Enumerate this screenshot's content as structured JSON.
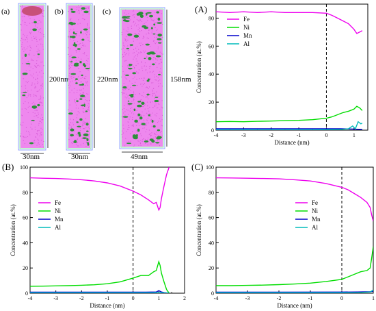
{
  "tomography": {
    "panels": [
      {
        "label": "(a)",
        "width_label": "30nm",
        "height_label": "200nm"
      },
      {
        "label": "(b)",
        "width_label": "30nm",
        "height_label": "220nm"
      },
      {
        "label": "(c)",
        "width_label": "49nm",
        "height_label": "158nm"
      }
    ],
    "colors": {
      "matrix": "#ee88ee",
      "matrix_dense": "#d65bd6",
      "precipitate": "#2d8f3a",
      "frame_left": "#8fa3ff",
      "frame_right": "#8de0a8"
    }
  },
  "chart_data": [
    {
      "id": "A",
      "type": "line",
      "panel_label": "(A)",
      "xlabel": "Distance (nm)",
      "ylabel": "Concentration (at.%)",
      "xlim": [
        -4,
        1.5
      ],
      "ylim": [
        0,
        90
      ],
      "xticks": [
        -4,
        -3,
        -2,
        -1,
        0,
        1
      ],
      "xtick_labels": [
        "-4",
        "-3",
        "-2",
        "-1",
        "0",
        "1"
      ],
      "yticks": [
        0,
        20,
        40,
        60,
        80
      ],
      "ytick_labels": [
        "0",
        "20",
        "40",
        "60",
        "80"
      ],
      "interface_x": 0,
      "legend": {
        "position": "top-left",
        "entries": [
          "Fe",
          "Ni",
          "Mn",
          "Al"
        ]
      },
      "series": [
        {
          "name": "Fe",
          "color": "#ee00ee",
          "x": [
            -4,
            -3.5,
            -3,
            -2.5,
            -2,
            -1.5,
            -1,
            -0.5,
            0,
            0.2,
            0.4,
            0.6,
            0.8,
            1.0,
            1.1,
            1.2,
            1.3
          ],
          "y": [
            84.5,
            84,
            84.5,
            84,
            84.5,
            84,
            84,
            84,
            83.5,
            82,
            80,
            78,
            76,
            72,
            69,
            70,
            71
          ]
        },
        {
          "name": "Ni",
          "color": "#00dd00",
          "x": [
            -4,
            -3.5,
            -3,
            -2.5,
            -2,
            -1.5,
            -1,
            -0.5,
            0,
            0.2,
            0.4,
            0.6,
            0.8,
            1.0,
            1.1,
            1.2,
            1.3
          ],
          "y": [
            6,
            6.2,
            6,
            6.3,
            6.5,
            6.8,
            7,
            7.5,
            8.5,
            9.5,
            11,
            12.5,
            13.5,
            15,
            17,
            16,
            14
          ]
        },
        {
          "name": "Mn",
          "color": "#0000cc",
          "x": [
            -4,
            -3,
            -2,
            -1,
            0,
            0.5,
            1.0,
            1.2,
            1.3
          ],
          "y": [
            1,
            1,
            1,
            1,
            1,
            1,
            0.8,
            0.6,
            0.5
          ]
        },
        {
          "name": "Al",
          "color": "#00bbbb",
          "x": [
            -4,
            -3,
            -2,
            -1,
            -0.5,
            0,
            0.5,
            0.8,
            0.95,
            1.05,
            1.15,
            1.25,
            1.3
          ],
          "y": [
            0.3,
            0.3,
            0.3,
            0.3,
            0.3,
            0.4,
            0.5,
            1,
            3,
            1,
            6,
            4.5,
            5
          ]
        }
      ]
    },
    {
      "id": "B",
      "type": "line",
      "panel_label": "(B)",
      "xlabel": "Distance (nm)",
      "ylabel": "Concentration (at.%)",
      "xlim": [
        -4,
        2
      ],
      "ylim": [
        0,
        100
      ],
      "xticks": [
        -4,
        -3,
        -2,
        -1,
        0,
        1,
        2
      ],
      "xtick_labels": [
        "-4",
        "-3",
        "-2",
        "-1",
        "0",
        "1",
        "2"
      ],
      "yticks": [
        0,
        20,
        40,
        60,
        80,
        100
      ],
      "ytick_labels": [
        "0",
        "20",
        "40",
        "60",
        "80",
        "100"
      ],
      "interface_x": 0,
      "legend": {
        "position": "left",
        "entries": [
          "Fe",
          "Ni",
          "Mn",
          "Al"
        ]
      },
      "series": [
        {
          "name": "Fe",
          "color": "#ee00ee",
          "x": [
            -4,
            -3.5,
            -3,
            -2.5,
            -2,
            -1.5,
            -1,
            -0.5,
            0,
            0.3,
            0.6,
            0.8,
            0.9,
            1.0,
            1.05,
            1.1,
            1.2,
            1.3,
            1.4
          ],
          "y": [
            91.5,
            91.2,
            91,
            90.6,
            90,
            89,
            87.5,
            85,
            81,
            78,
            74,
            71,
            72,
            66,
            68,
            75,
            85,
            94,
            100
          ]
        },
        {
          "name": "Ni",
          "color": "#00dd00",
          "x": [
            -4,
            -3.5,
            -3,
            -2.5,
            -2,
            -1.5,
            -1,
            -0.5,
            0,
            0.3,
            0.6,
            0.8,
            0.9,
            1.0,
            1.05,
            1.1,
            1.2,
            1.3,
            1.4
          ],
          "y": [
            5.5,
            5.6,
            5.8,
            6,
            6.3,
            6.7,
            7.5,
            9,
            12,
            14,
            14,
            17,
            18,
            25,
            22,
            16,
            9,
            3,
            0
          ]
        },
        {
          "name": "Mn",
          "color": "#0000cc",
          "x": [
            -4,
            -2,
            0,
            0.5,
            0.9,
            1.0,
            1.1,
            1.2,
            1.4
          ],
          "y": [
            0.8,
            0.8,
            0.8,
            0.8,
            1,
            2,
            1,
            0.5,
            0
          ]
        },
        {
          "name": "Al",
          "color": "#00bbbb",
          "x": [
            -4,
            -2,
            0,
            0.8,
            1.0,
            1.2,
            1.4
          ],
          "y": [
            0.3,
            0.3,
            0.3,
            0.3,
            0.5,
            0.2,
            0
          ]
        }
      ]
    },
    {
      "id": "C",
      "type": "line",
      "panel_label": "(C)",
      "xlabel": "Distance (nm)",
      "ylabel": "Concentration (at.%)",
      "xlim": [
        -4,
        1
      ],
      "ylim": [
        0,
        100
      ],
      "xticks": [
        -4,
        -3,
        -2,
        -1,
        0,
        1
      ],
      "xtick_labels": [
        "-4",
        "-3",
        "-2",
        "-1",
        "0",
        "1"
      ],
      "yticks": [
        0,
        20,
        40,
        60,
        80,
        100
      ],
      "ytick_labels": [
        "0",
        "20",
        "40",
        "60",
        "80",
        "100"
      ],
      "interface_x": 0,
      "legend": {
        "position": "top-right",
        "entries": [
          "Fe",
          "Ni",
          "Mn",
          "Al"
        ]
      },
      "series": [
        {
          "name": "Fe",
          "color": "#ee00ee",
          "x": [
            -4,
            -3.5,
            -3,
            -2.5,
            -2,
            -1.5,
            -1,
            -0.5,
            0,
            0.2,
            0.4,
            0.6,
            0.8,
            0.9,
            0.95,
            1.0
          ],
          "y": [
            91.5,
            91.4,
            91.2,
            91,
            90.7,
            90,
            89,
            87,
            84,
            82,
            79,
            76,
            72,
            68,
            62,
            57
          ]
        },
        {
          "name": "Ni",
          "color": "#00dd00",
          "x": [
            -4,
            -3.5,
            -3,
            -2.5,
            -2,
            -1.5,
            -1,
            -0.5,
            0,
            0.2,
            0.4,
            0.6,
            0.8,
            0.9,
            0.95,
            1.0
          ],
          "y": [
            6,
            6,
            6.2,
            6.4,
            6.8,
            7.3,
            8,
            9.3,
            11,
            13,
            15,
            17,
            18,
            20,
            28,
            37
          ]
        },
        {
          "name": "Mn",
          "color": "#0000cc",
          "x": [
            -4,
            -2,
            0,
            0.5,
            0.9,
            1.0
          ],
          "y": [
            0.8,
            0.8,
            0.9,
            1,
            1.2,
            1.5
          ]
        },
        {
          "name": "Al",
          "color": "#00bbbb",
          "x": [
            -4,
            -2,
            0,
            0.5,
            0.9,
            1.0
          ],
          "y": [
            0.4,
            0.4,
            0.4,
            0.5,
            1,
            2.5
          ]
        }
      ]
    }
  ]
}
